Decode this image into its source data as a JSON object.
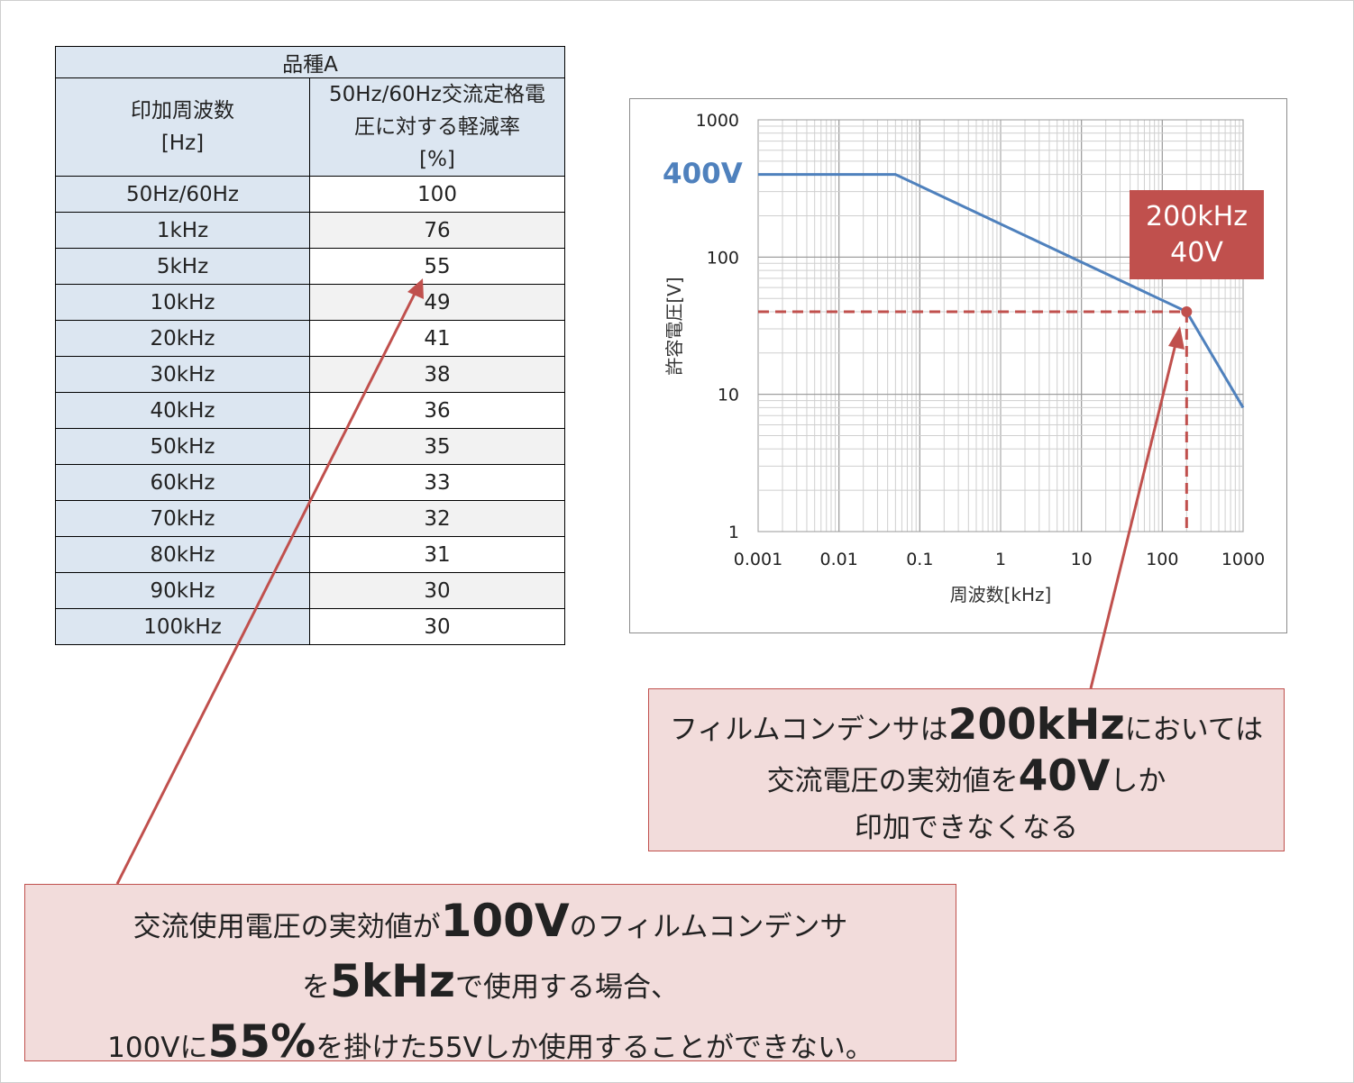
{
  "table": {
    "title": "品種A",
    "col1_header": [
      "印加周波数",
      "[Hz]"
    ],
    "col2_header": [
      "50Hz/60Hz交流定格電",
      "圧に対する軽減率",
      "[%]"
    ],
    "rows": [
      {
        "freq": "50Hz/60Hz",
        "rate": "100"
      },
      {
        "freq": "1kHz",
        "rate": "76"
      },
      {
        "freq": "5kHz",
        "rate": "55"
      },
      {
        "freq": "10kHz",
        "rate": "49"
      },
      {
        "freq": "20kHz",
        "rate": "41"
      },
      {
        "freq": "30kHz",
        "rate": "38"
      },
      {
        "freq": "40kHz",
        "rate": "36"
      },
      {
        "freq": "50kHz",
        "rate": "35"
      },
      {
        "freq": "60kHz",
        "rate": "33"
      },
      {
        "freq": "70kHz",
        "rate": "32"
      },
      {
        "freq": "80kHz",
        "rate": "31"
      },
      {
        "freq": "90kHz",
        "rate": "30"
      },
      {
        "freq": "100kHz",
        "rate": "30"
      }
    ]
  },
  "chart_data": {
    "type": "line",
    "xlabel": "周波数[kHz]",
    "ylabel": "許容電圧[V]",
    "xscale": "log",
    "yscale": "log",
    "xlim": [
      0.001,
      1000
    ],
    "ylim": [
      1,
      1000
    ],
    "x_ticks": [
      "0.001",
      "0.01",
      "0.1",
      "1",
      "10",
      "100",
      "1000"
    ],
    "y_ticks": [
      "1",
      "10",
      "100",
      "1000"
    ],
    "grid": true,
    "series": [
      {
        "x": [
          0.001,
          0.05,
          200,
          1000
        ],
        "y": [
          400,
          400,
          40,
          8
        ],
        "color": "#4f81bd"
      }
    ],
    "highlight_point": {
      "x": 200,
      "y": 40,
      "color": "#c0504d"
    },
    "annotations": {
      "level_label": "400V",
      "point_label_line1": "200kHz",
      "point_label_line2": "40V"
    }
  },
  "callout_right": {
    "l1a": "フィルムコンデンサは",
    "l1b": "200kHz",
    "l1c": "においては",
    "l2a": "交流電圧の実効値を",
    "l2b": "40V",
    "l2c": "しか",
    "l3": "印加できなくなる"
  },
  "callout_bottom": {
    "l1a": "交流使用電圧の実効値が",
    "l1b": "100V",
    "l1c": "のフィルムコンデンサ",
    "l2a": "を",
    "l2b": "5kHz",
    "l2c": "で使用する場合、",
    "l3a": "100Vに",
    "l3b": "55%",
    "l3c": "を掛けた55Vしか使用することができない。"
  },
  "colors": {
    "accent_red": "#c0504d",
    "series_blue": "#4f81bd",
    "header_blue": "#dce6f1",
    "callout_bg": "#f2dcdb"
  }
}
